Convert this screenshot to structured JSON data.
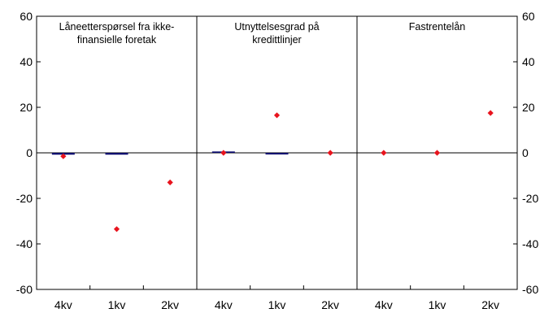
{
  "chart_data": {
    "type": "bar",
    "ylim": [
      -60,
      60
    ],
    "y_ticks": [
      "60",
      "40",
      "20",
      "0",
      "-20",
      "-40",
      "-60"
    ],
    "y_tick_values": [
      60,
      40,
      20,
      0,
      -20,
      -40,
      -60
    ],
    "grid": false,
    "legend": "none",
    "colors": {
      "bar": "#0a0a6e",
      "point": "#e8141e",
      "axis": "#000000"
    },
    "panels": [
      {
        "title_lines": [
          "Låneetterspørsel fra ikke-",
          "finansielle foretak"
        ],
        "categories": [
          "4kv",
          "1kv",
          "2kv"
        ],
        "bar_values": [
          -0.8,
          -0.8,
          null
        ],
        "point_values": [
          -1.5,
          -33.5,
          -13
        ]
      },
      {
        "title_lines": [
          "Utnyttelsesgrad på",
          "kredittlinjer"
        ],
        "categories": [
          "4kv",
          "1kv",
          "2kv"
        ],
        "bar_values": [
          0.6,
          -0.7,
          null
        ],
        "point_values": [
          0,
          16.5,
          0
        ]
      },
      {
        "title_lines": [
          "Fastrentelån"
        ],
        "categories": [
          "4kv",
          "1kv",
          "2kv"
        ],
        "bar_values": [
          null,
          null,
          null
        ],
        "point_values": [
          0,
          0,
          17.5
        ]
      }
    ]
  }
}
